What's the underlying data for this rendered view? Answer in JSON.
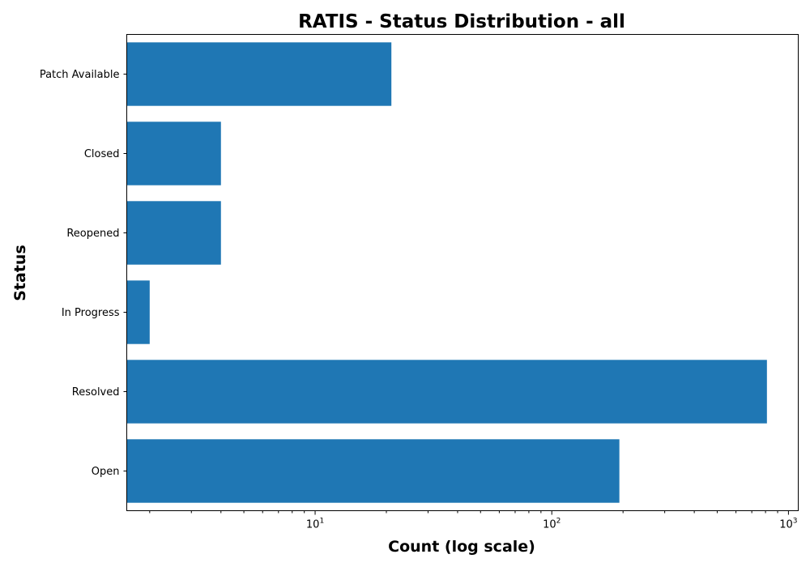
{
  "chart_data": {
    "type": "bar",
    "orientation": "horizontal",
    "title": "RATIS - Status Distribution - all",
    "xlabel": "Count (log scale)",
    "ylabel": "Status",
    "x_scale": "log",
    "xlim": [
      1.6,
      1100
    ],
    "x_ticks": [
      {
        "value": 10,
        "base": "10",
        "exponent": "1"
      },
      {
        "value": 100,
        "base": "10",
        "exponent": "2"
      },
      {
        "value": 1000,
        "base": "10",
        "exponent": "3"
      }
    ],
    "categories": [
      "Open",
      "Resolved",
      "In Progress",
      "Reopened",
      "Closed",
      "Patch Available"
    ],
    "values": [
      193,
      811,
      2,
      4,
      4,
      21
    ],
    "bar_color": "#1f77b4",
    "grid": false,
    "legend": "none"
  }
}
